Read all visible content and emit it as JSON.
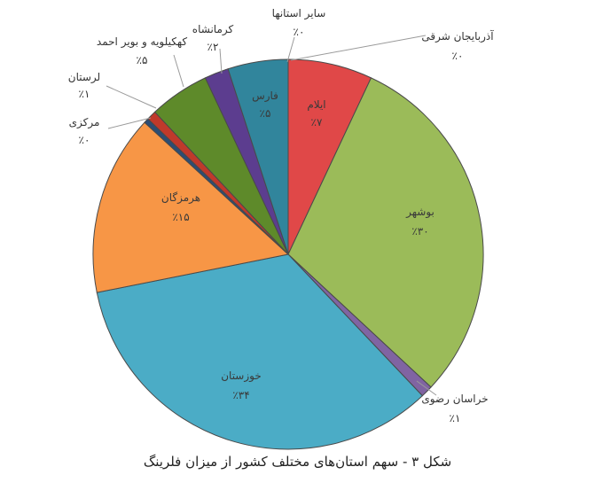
{
  "chart_data": {
    "type": "pie",
    "title": "",
    "slices": [
      {
        "name": "ایلام",
        "value_label": "٪۷",
        "value": 7,
        "color": "#e04848"
      },
      {
        "name": "بوشهر",
        "value_label": "٪۳۰",
        "value": 30,
        "color": "#9bbb59"
      },
      {
        "name": "خراسان رضوی",
        "value_label": "٪۱",
        "value": 1,
        "color": "#8064a2"
      },
      {
        "name": "خوزستان",
        "value_label": "٪۳۴",
        "value": 34,
        "color": "#4bacc6"
      },
      {
        "name": "هرمزگان",
        "value_label": "٪۱۵",
        "value": 15,
        "color": "#f79646"
      },
      {
        "name": "مرکزی",
        "value_label": "٪۰",
        "value": 0.4,
        "color": "#2c4d75"
      },
      {
        "name": "لرستان",
        "value_label": "٪۱",
        "value": 0.8,
        "color": "#c0392b"
      },
      {
        "name": "کهکیلویه و بویر احمد",
        "value_label": "٪۵",
        "value": 5,
        "color": "#5e8a2a"
      },
      {
        "name": "کرمانشاه",
        "value_label": "٪۲",
        "value": 2,
        "color": "#5c3d8f"
      },
      {
        "name": "فارس",
        "value_label": "٪۵",
        "value": 5,
        "color": "#31859c"
      },
      {
        "name": "سایر استانها",
        "value_label": "٪۰",
        "value": 0,
        "color": "#1f4e79"
      },
      {
        "name": "آذربایجان شرقی",
        "value_label": "٪۰",
        "value": 0,
        "color": "#366092"
      }
    ],
    "legend": "none"
  },
  "caption": "شکل ۳ - سهم استان‌های مختلف کشور از میزان فلرینگ"
}
